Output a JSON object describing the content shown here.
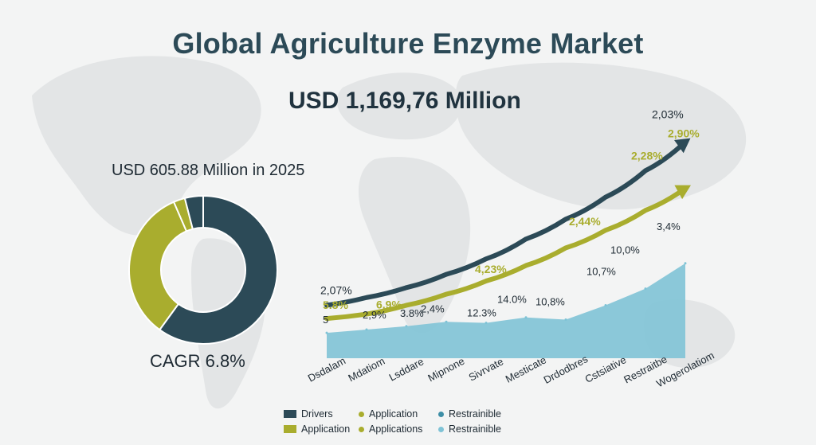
{
  "header": {
    "title": "Global Agriculture Enzyme Market",
    "headline_value": "USD 1,169,76 Million"
  },
  "donut": {
    "label": "USD 605.88 Million in 2025",
    "cagr": "CAGR 6.8%"
  },
  "legend": {
    "items": [
      {
        "label": "Drivers",
        "color": "#2c4a57",
        "shape": "rect"
      },
      {
        "label": "Application",
        "color": "#a9ad2e",
        "shape": "dot"
      },
      {
        "label": "Restrainible",
        "color": "#3d8ea6",
        "shape": "dot"
      },
      {
        "label": "Application",
        "color": "#a9ad2e",
        "shape": "rect"
      },
      {
        "label": "Applications",
        "color": "#a9ad2e",
        "shape": "dot"
      },
      {
        "label": "Restrainible",
        "color": "#7fc3d6",
        "shape": "dot"
      }
    ]
  },
  "colors": {
    "dark": "#2c4a57",
    "olive": "#a9ad2e",
    "light_blue": "#7fc3d6",
    "title": "#2c4a57"
  },
  "chart_data": [
    {
      "type": "pie",
      "variant": "donut",
      "slices": [
        {
          "name": "dark",
          "value": 60,
          "color": "#2c4a57"
        },
        {
          "name": "olive",
          "value": 33.5,
          "color": "#a9ad2e"
        },
        {
          "name": "olive-thin",
          "value": 2.5,
          "color": "#a9ad2e"
        },
        {
          "name": "dark-thin",
          "value": 4,
          "color": "#2c4a57"
        }
      ]
    },
    {
      "type": "line",
      "categories": [
        "Dsdalam",
        "Mdatiom",
        "Lsddare",
        "Mipnone",
        "Sivrvate",
        "Mesticate",
        "Drdodbres",
        "Cstsiative",
        "Restraitbe",
        "Wogerolatiom"
      ],
      "series": [
        {
          "color": "#2c4a57",
          "values": [
            24,
            27.5,
            32,
            38,
            45,
            54,
            63,
            73,
            85,
            98
          ],
          "point_labels": [
            {
              "index": 0,
              "text": "2,07%"
            },
            {
              "index": 9,
              "text": "2,03%"
            }
          ]
        },
        {
          "color": "#a9ad2e",
          "values": [
            18,
            20,
            24,
            29,
            35,
            42,
            50,
            58,
            67,
            77
          ],
          "point_labels": [
            {
              "index": 0,
              "text": "5.8%"
            },
            {
              "index": 2,
              "text": "6,9%"
            },
            {
              "index": 4,
              "text": "4,23%"
            },
            {
              "index": 7,
              "text": "2,44%"
            },
            {
              "index": 9,
              "text": "2,28%"
            },
            {
              "index": 9,
              "text": "2,90%"
            }
          ]
        },
        {
          "type": "area",
          "color": "#7fc3d6",
          "values": [
            11.5,
            13,
            14.5,
            16.5,
            16,
            18.5,
            17.5,
            24,
            31.5,
            43
          ],
          "point_labels": [
            {
              "index": 0,
              "text": "5"
            },
            {
              "index": 1,
              "text": "2,9%"
            },
            {
              "index": 2,
              "text": "3.8%"
            },
            {
              "index": 3,
              "text": "2,4%"
            },
            {
              "index": 4,
              "text": "12.3%"
            },
            {
              "index": 5,
              "text": "14.0%"
            },
            {
              "index": 6,
              "text": "10,8%"
            },
            {
              "index": 7,
              "text": "10,7%"
            },
            {
              "index": 8,
              "text": "10,0%"
            },
            {
              "index": 9,
              "text": "3,4%"
            }
          ]
        }
      ],
      "ylim": [
        0,
        110
      ],
      "grid": false
    }
  ]
}
